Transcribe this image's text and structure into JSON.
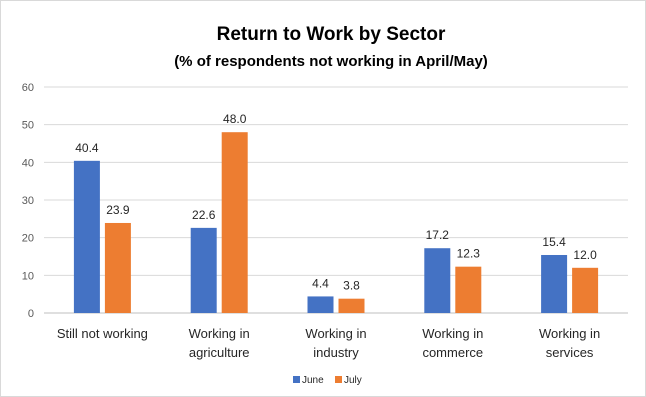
{
  "chart_data": {
    "type": "bar",
    "title": "Return to Work by Sector",
    "subtitle": "(% of respondents not working in April/May)",
    "categories": [
      [
        "Still not working"
      ],
      [
        "Working in",
        "agriculture"
      ],
      [
        "Working in",
        "industry"
      ],
      [
        "Working in",
        "commerce"
      ],
      [
        "Working in",
        "services"
      ]
    ],
    "series": [
      {
        "name": "June",
        "color": "#4472C4",
        "values": [
          40.4,
          22.6,
          4.4,
          17.2,
          15.4
        ],
        "labels": [
          "40.4",
          "22.6",
          "4.4",
          "17.2",
          "15.4"
        ]
      },
      {
        "name": "July",
        "color": "#ED7D31",
        "values": [
          23.9,
          48.0,
          3.8,
          12.3,
          12.0
        ],
        "labels": [
          "23.9",
          "48.0",
          "3.8",
          "12.3",
          "12.0"
        ]
      }
    ],
    "ylim": [
      0,
      60
    ],
    "yticks": [
      "0",
      "10",
      "20",
      "30",
      "40",
      "50",
      "60"
    ],
    "ytick_values": [
      0,
      10,
      20,
      30,
      40,
      50,
      60
    ],
    "grid": true,
    "legend_position": "bottom"
  }
}
